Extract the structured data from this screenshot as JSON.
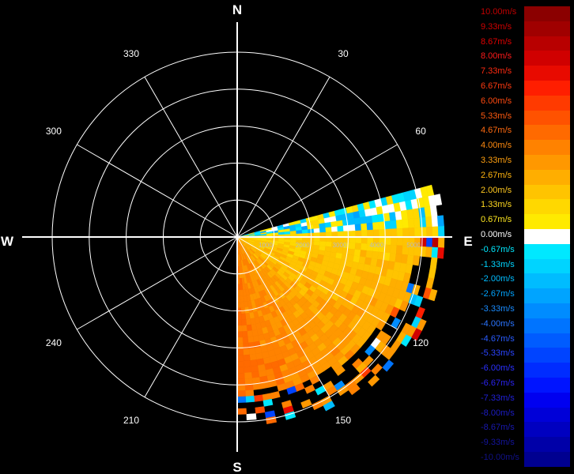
{
  "chart_data": {
    "type": "heatmap",
    "subtype": "polar-radar-velocity",
    "cardinals": {
      "north": "N",
      "south": "S",
      "east": "E",
      "west": "W"
    },
    "azimuth_labels": [
      {
        "deg": 30,
        "text": "30"
      },
      {
        "deg": 60,
        "text": "60"
      },
      {
        "deg": 120,
        "text": "120"
      },
      {
        "deg": 150,
        "text": "150"
      },
      {
        "deg": 210,
        "text": "210"
      },
      {
        "deg": 240,
        "text": "240"
      },
      {
        "deg": 300,
        "text": "300"
      },
      {
        "deg": 330,
        "text": "330"
      }
    ],
    "range_labels": [
      "1000",
      "2000",
      "3000",
      "4000",
      "5000"
    ],
    "range_max": 5000,
    "data_sector_deg": [
      75,
      180
    ],
    "legend_position": "right",
    "colorbar": [
      {
        "label": "10.00m/s",
        "color": "#8b0000",
        "text_color": "#c00000"
      },
      {
        "label": "9.33m/s",
        "color": "#a00000",
        "text_color": "#d00000"
      },
      {
        "label": "8.67m/s",
        "color": "#b80000",
        "text_color": "#e00000"
      },
      {
        "label": "8.00m/s",
        "color": "#d00000",
        "text_color": "#ff1a1a"
      },
      {
        "label": "7.33m/s",
        "color": "#e80a00",
        "text_color": "#ff2a10"
      },
      {
        "label": "6.67m/s",
        "color": "#ff1e00",
        "text_color": "#ff3a10"
      },
      {
        "label": "6.00m/s",
        "color": "#ff3a00",
        "text_color": "#ff4a10"
      },
      {
        "label": "5.33m/s",
        "color": "#ff5200",
        "text_color": "#ff5a10"
      },
      {
        "label": "4.67m/s",
        "color": "#ff6a00",
        "text_color": "#ff6a10"
      },
      {
        "label": "4.00m/s",
        "color": "#ff8200",
        "text_color": "#ff8a10"
      },
      {
        "label": "3.33m/s",
        "color": "#ff9800",
        "text_color": "#ffa010"
      },
      {
        "label": "2.67m/s",
        "color": "#ffae00",
        "text_color": "#ffb410"
      },
      {
        "label": "2.00m/s",
        "color": "#ffc400",
        "text_color": "#ffc820"
      },
      {
        "label": "1.33m/s",
        "color": "#ffd800",
        "text_color": "#ffd820"
      },
      {
        "label": "0.67m/s",
        "color": "#ffea00",
        "text_color": "#ffe820"
      },
      {
        "label": "0.00m/s",
        "color": "#ffffff",
        "text_color": "#ffffff"
      },
      {
        "label": "-0.67m/s",
        "color": "#00e8ff",
        "text_color": "#00e8ff"
      },
      {
        "label": "-1.33m/s",
        "color": "#00d4ff",
        "text_color": "#00d4ff"
      },
      {
        "label": "-2.00m/s",
        "color": "#00bcff",
        "text_color": "#00bcff"
      },
      {
        "label": "-2.67m/s",
        "color": "#00a4ff",
        "text_color": "#00a4ff"
      },
      {
        "label": "-3.33m/s",
        "color": "#008cff",
        "text_color": "#1a8cff"
      },
      {
        "label": "-4.00m/s",
        "color": "#0074ff",
        "text_color": "#2a74ff"
      },
      {
        "label": "-4.67m/s",
        "color": "#005cff",
        "text_color": "#2a5cff"
      },
      {
        "label": "-5.33m/s",
        "color": "#0044ff",
        "text_color": "#2a44ff"
      },
      {
        "label": "-6.00m/s",
        "color": "#002cff",
        "text_color": "#2a30ff"
      },
      {
        "label": "-6.67m/s",
        "color": "#0014ff",
        "text_color": "#2a22ee"
      },
      {
        "label": "-7.33m/s",
        "color": "#0000f0",
        "text_color": "#2020d8"
      },
      {
        "label": "-8.00m/s",
        "color": "#0000d8",
        "text_color": "#1c1cc4"
      },
      {
        "label": "-8.67m/s",
        "color": "#0000c0",
        "text_color": "#1818b0"
      },
      {
        "label": "-9.33m/s",
        "color": "#0000a8",
        "text_color": "#14149c"
      },
      {
        "label": "-10.00m/s",
        "color": "#000090",
        "text_color": "#101088"
      }
    ]
  }
}
